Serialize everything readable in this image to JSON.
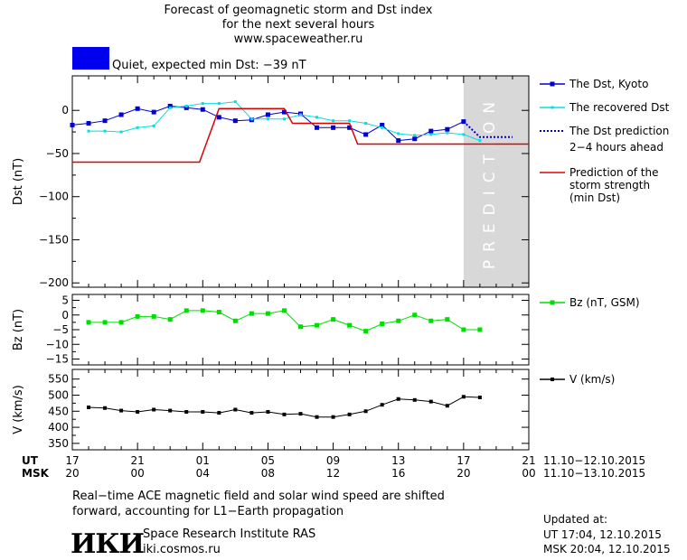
{
  "header": {
    "title_line1": "Forecast of geomagnetic storm and Dst index",
    "title_line2": "for the next several hours",
    "site": "www.spaceweather.ru",
    "status_text": "Quiet, expected min Dst: −39 nT",
    "status_color": "#0000ee"
  },
  "legend": {
    "dst_kyoto": "The Dst, Kyoto",
    "dst_recovered": "The recovered Dst",
    "dst_prediction_l1": "The Dst prediction",
    "dst_prediction_l2": "2−4 hours ahead",
    "storm_l1": "Prediction of the",
    "storm_l2": "storm strength",
    "storm_l3": "(min Dst)",
    "bz": "Bz (nT, GSM)",
    "v": "V (km/s)"
  },
  "prediction_label": "PREDICTION",
  "time_axis": {
    "ut_label": "UT",
    "msk_label": "MSK",
    "ut_ticks": [
      "17",
      "21",
      "01",
      "05",
      "09",
      "13",
      "17",
      "21"
    ],
    "msk_ticks": [
      "20",
      "00",
      "04",
      "08",
      "12",
      "16",
      "20",
      "00"
    ],
    "ut_range": "11.10−12.10.2015",
    "msk_range": "11.10−13.10.2015"
  },
  "footer": {
    "note_l1": "Real−time ACE magnetic field and solar wind speed are shifted",
    "note_l2": "forward, accounting for L1−Earth propagation",
    "org_name": "Space Research Institute RAS",
    "org_site": "iki.cosmos.ru",
    "logo_text": "ИКИ",
    "updated_label": "Updated at:",
    "updated_ut": "UT   17:04, 12.10.2015",
    "updated_msk": "MSK 20:04, 12.10.2015"
  },
  "colors": {
    "kyoto": "#0000cc",
    "recovered": "#00e0e0",
    "prediction": "#0000cc",
    "storm": "#dd0000",
    "bz": "#00dd00",
    "v": "#000000",
    "prediction_band": "#d8d8d8"
  },
  "chart_data": [
    {
      "type": "line",
      "ylabel": "Dst (nT)",
      "xlabel": "",
      "x_unit": "hours since 17 UT, 11.10.2015",
      "xlim": [
        0,
        28
      ],
      "ylim": [
        -205,
        40
      ],
      "yticks": [
        0,
        -50,
        -100,
        -150,
        -200
      ],
      "ytick_labels": [
        "0",
        "−50",
        "−100",
        "−150",
        "−200"
      ],
      "prediction_band": [
        24,
        28
      ],
      "series": [
        {
          "name": "The Dst, Kyoto",
          "x": [
            0,
            1,
            2,
            3,
            4,
            5,
            6,
            7,
            8,
            9,
            10,
            11,
            12,
            13,
            14,
            15,
            16,
            17,
            18,
            19,
            20,
            21,
            22,
            23,
            24
          ],
          "y": [
            -17,
            -15,
            -12,
            -5,
            2,
            -2,
            5,
            3,
            1,
            -8,
            -12,
            -11,
            -5,
            -2,
            -4,
            -20,
            -20,
            -20,
            -28,
            -17,
            -35,
            -33,
            -24,
            -22,
            -13
          ]
        },
        {
          "name": "The recovered Dst",
          "x": [
            1,
            2,
            3,
            4,
            5,
            6,
            7,
            8,
            9,
            10,
            11,
            12,
            13,
            14,
            15,
            16,
            17,
            18,
            19,
            20,
            21,
            22,
            23,
            24,
            25
          ],
          "y": [
            -24,
            -24,
            -25,
            -20,
            -18,
            3,
            5,
            8,
            8,
            10,
            -10,
            -10,
            -10,
            -5,
            -8,
            -12,
            -12,
            -15,
            -20,
            -27,
            -29,
            -28,
            -26,
            -28,
            -35
          ]
        },
        {
          "name": "The Dst prediction 2−4 hours ahead",
          "x": [
            24,
            25,
            26,
            27
          ],
          "y": [
            -13,
            -31,
            -31,
            -31
          ]
        },
        {
          "name": "Prediction of the storm strength (min Dst)",
          "x": [
            0,
            7.8,
            9,
            13,
            13.5,
            17,
            17.5,
            28
          ],
          "y": [
            -60,
            -60,
            2,
            2,
            -15,
            -15,
            -39,
            -39
          ]
        }
      ]
    },
    {
      "type": "line",
      "ylabel": "Bz (nT)",
      "xlim": [
        0,
        28
      ],
      "ylim": [
        -17,
        7
      ],
      "yticks": [
        5,
        0,
        -5,
        -10,
        -15
      ],
      "ytick_labels": [
        "5",
        "0",
        "−5",
        "−10",
        "−15"
      ],
      "series": [
        {
          "name": "Bz (nT, GSM)",
          "x": [
            1,
            2,
            3,
            4,
            5,
            6,
            7,
            8,
            9,
            10,
            11,
            12,
            13,
            14,
            15,
            16,
            17,
            18,
            19,
            20,
            21,
            22,
            23,
            24,
            25
          ],
          "y": [
            -2.5,
            -2.5,
            -2.5,
            -0.5,
            -0.5,
            -1.5,
            1.5,
            1.5,
            1.0,
            -2.0,
            0.5,
            0.5,
            1.5,
            -4.0,
            -3.5,
            -1.5,
            -3.5,
            -5.5,
            -3.0,
            -2.0,
            0.0,
            -2.0,
            -1.5,
            -5.0,
            -5.0
          ]
        }
      ]
    },
    {
      "type": "line",
      "ylabel": "V (km/s)",
      "xlim": [
        0,
        28
      ],
      "ylim": [
        330,
        580
      ],
      "yticks": [
        550,
        500,
        450,
        400,
        350
      ],
      "ytick_labels": [
        "550",
        "500",
        "450",
        "400",
        "350"
      ],
      "series": [
        {
          "name": "V (km/s)",
          "x": [
            1,
            2,
            3,
            4,
            5,
            6,
            7,
            8,
            9,
            10,
            11,
            12,
            13,
            14,
            15,
            16,
            17,
            18,
            19,
            20,
            21,
            22,
            23,
            24,
            25
          ],
          "y": [
            462,
            460,
            452,
            448,
            455,
            452,
            448,
            448,
            445,
            455,
            445,
            448,
            440,
            442,
            432,
            432,
            440,
            450,
            470,
            488,
            485,
            480,
            467,
            495,
            493
          ]
        }
      ]
    }
  ]
}
